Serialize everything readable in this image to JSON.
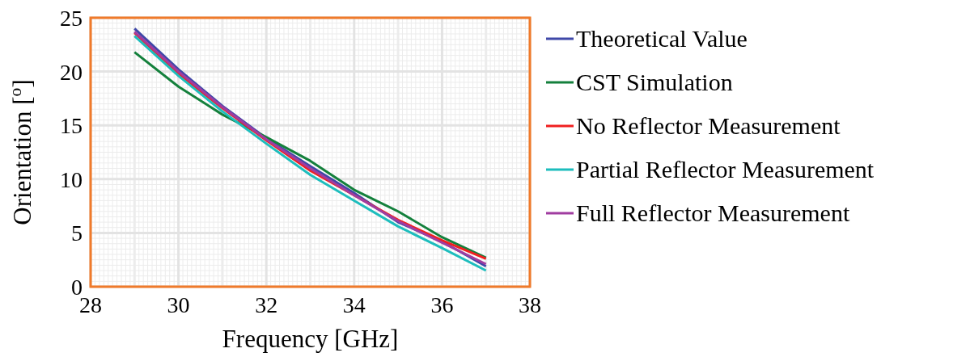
{
  "chart_data": {
    "type": "line",
    "xlabel": "Frequency [GHz]",
    "ylabel": "Orientation [$^{o}$]",
    "x": [
      29,
      30,
      31,
      32,
      33,
      34,
      35,
      36,
      37
    ],
    "xlim": [
      28,
      38
    ],
    "xticks": [
      28,
      30,
      32,
      34,
      36,
      38
    ],
    "ylim": [
      0,
      25
    ],
    "yticks": [
      0,
      5,
      10,
      15,
      20,
      25
    ],
    "grid": true,
    "legend": "right",
    "marker": "none",
    "line_style": "solid",
    "series": [
      {
        "name": "Theoretical Value",
        "color": "#3f48a8",
        "values": [
          24.0,
          20.2,
          16.8,
          13.8,
          11.2,
          8.7,
          6.0,
          4.2,
          1.9
        ]
      },
      {
        "name": "CST Simulation",
        "color": "#14803c",
        "values": [
          21.8,
          18.6,
          16.0,
          13.9,
          11.7,
          9.0,
          7.0,
          4.6,
          2.7
        ]
      },
      {
        "name": "No Reflector Measurement",
        "color": "#f02020",
        "values": [
          23.6,
          19.8,
          16.6,
          13.6,
          10.8,
          8.5,
          6.2,
          4.3,
          2.6
        ]
      },
      {
        "name": "Partial Reflector Measurement",
        "color": "#1dbdbd",
        "values": [
          23.3,
          19.6,
          16.3,
          13.3,
          10.4,
          8.0,
          5.6,
          3.6,
          1.5
        ]
      },
      {
        "name": "Full Reflector Measurement",
        "color": "#a03ca0",
        "values": [
          23.7,
          20.0,
          16.7,
          13.7,
          11.0,
          8.5,
          6.1,
          4.1,
          2.1
        ]
      }
    ]
  }
}
